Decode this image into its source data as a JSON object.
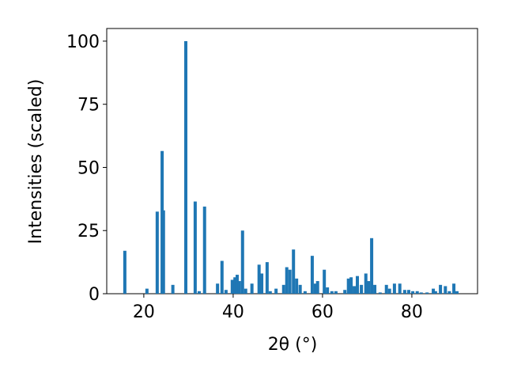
{
  "chart_data": {
    "type": "bar",
    "xlabel": "2θ (°)",
    "ylabel": "Intensities (scaled)",
    "color": "#1f77b4",
    "x": [
      15.75,
      20.7,
      23.0,
      24.1,
      24.4,
      26.5,
      29.4,
      31.5,
      32.4,
      33.6,
      36.5,
      37.5,
      38.4,
      39.8,
      40.4,
      40.9,
      41.4,
      42.1,
      42.8,
      44.2,
      45.8,
      46.4,
      47.6,
      48.3,
      49.6,
      51.3,
      52.0,
      52.7,
      53.5,
      54.2,
      55.0,
      56.1,
      57.7,
      58.4,
      58.9,
      60.4,
      61.1,
      62.1,
      63.0,
      65.0,
      65.8,
      66.4,
      67.1,
      67.8,
      68.7,
      69.7,
      70.3,
      71.0,
      71.7,
      72.9,
      74.3,
      75.0,
      76.1,
      77.3,
      78.4,
      79.3,
      80.2,
      81.2,
      82.1,
      83.4,
      84.8,
      85.3,
      86.4,
      87.5,
      88.4,
      89.4,
      90.1
    ],
    "values": [
      17,
      2,
      32.5,
      56.5,
      33,
      3.5,
      100,
      36.5,
      1,
      34.5,
      4,
      13,
      1.5,
      5.5,
      6.5,
      7.5,
      5,
      25,
      2,
      4,
      11.5,
      8,
      12.5,
      1,
      2,
      3.5,
      10.5,
      9.5,
      17.5,
      6,
      3.5,
      1,
      15,
      4,
      5,
      9.5,
      2.5,
      1,
      1,
      1.5,
      6,
      6.5,
      3,
      7,
      3.5,
      8,
      5,
      22,
      3.5,
      0.5,
      3.5,
      2,
      4,
      4,
      1.5,
      1.5,
      1,
      1,
      0.5,
      0.5,
      2,
      1,
      3.5,
      3,
      1,
      4,
      1
    ],
    "xlim": [
      11.7,
      94.7
    ],
    "xticks": [
      20,
      40,
      60,
      80
    ],
    "ylim": [
      0,
      105
    ],
    "yticks": [
      0,
      25,
      50,
      75,
      100
    ]
  }
}
